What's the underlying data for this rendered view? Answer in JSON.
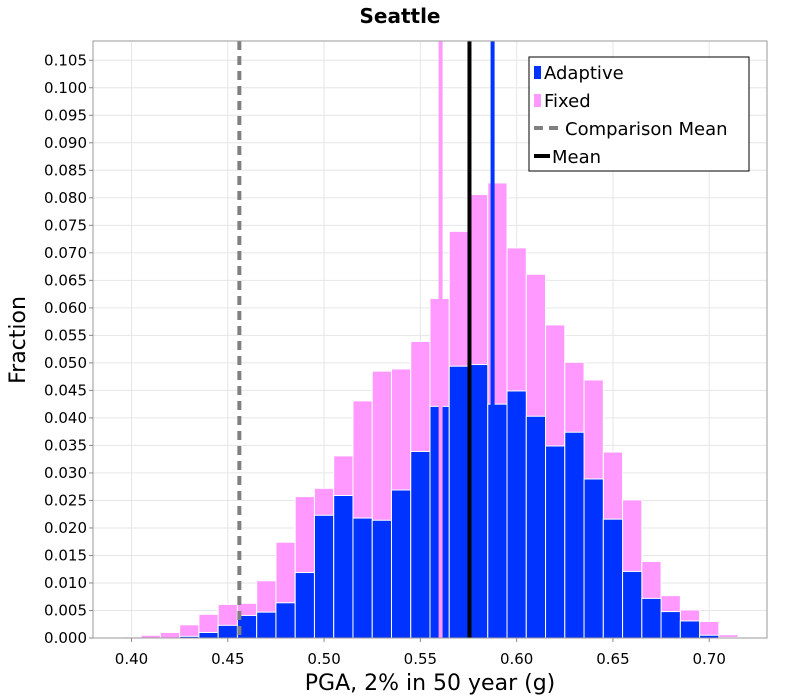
{
  "chart_data": {
    "type": "bar",
    "title": "Seattle",
    "xlabel": "PGA, 2% in 50 year (g)",
    "ylabel": "Fraction",
    "xlim": [
      0.38,
      0.73
    ],
    "ylim": [
      0.0,
      0.1085
    ],
    "bin_width": 0.01,
    "xticks": [
      "0.40",
      "0.45",
      "0.50",
      "0.55",
      "0.60",
      "0.65",
      "0.70"
    ],
    "yticks": [
      "0.000",
      "0.005",
      "0.010",
      "0.015",
      "0.020",
      "0.025",
      "0.030",
      "0.035",
      "0.040",
      "0.045",
      "0.050",
      "0.055",
      "0.060",
      "0.065",
      "0.070",
      "0.075",
      "0.080",
      "0.085",
      "0.090",
      "0.095",
      "0.100",
      "0.105"
    ],
    "grid": true,
    "legend_position": "top-right",
    "series": [
      {
        "name": "Fixed",
        "color": "#ff99ff",
        "bins": [
          {
            "x": 0.4,
            "v": 0.0002
          },
          {
            "x": 0.41,
            "v": 0.0005
          },
          {
            "x": 0.42,
            "v": 0.001
          },
          {
            "x": 0.43,
            "v": 0.0024
          },
          {
            "x": 0.44,
            "v": 0.0043
          },
          {
            "x": 0.45,
            "v": 0.0061
          },
          {
            "x": 0.46,
            "v": 0.0063
          },
          {
            "x": 0.47,
            "v": 0.0104
          },
          {
            "x": 0.48,
            "v": 0.0174
          },
          {
            "x": 0.49,
            "v": 0.0257
          },
          {
            "x": 0.5,
            "v": 0.0272
          },
          {
            "x": 0.51,
            "v": 0.0331
          },
          {
            "x": 0.52,
            "v": 0.0431
          },
          {
            "x": 0.53,
            "v": 0.0485
          },
          {
            "x": 0.54,
            "v": 0.0489
          },
          {
            "x": 0.55,
            "v": 0.0539
          },
          {
            "x": 0.56,
            "v": 0.0617
          },
          {
            "x": 0.57,
            "v": 0.0739
          },
          {
            "x": 0.58,
            "v": 0.0806
          },
          {
            "x": 0.59,
            "v": 0.0827
          },
          {
            "x": 0.6,
            "v": 0.0709
          },
          {
            "x": 0.61,
            "v": 0.0661
          },
          {
            "x": 0.62,
            "v": 0.0569
          },
          {
            "x": 0.63,
            "v": 0.0501
          },
          {
            "x": 0.64,
            "v": 0.0469
          },
          {
            "x": 0.65,
            "v": 0.0338
          },
          {
            "x": 0.66,
            "v": 0.0251
          },
          {
            "x": 0.67,
            "v": 0.0139
          },
          {
            "x": 0.68,
            "v": 0.0077
          },
          {
            "x": 0.69,
            "v": 0.0051
          },
          {
            "x": 0.7,
            "v": 0.003
          },
          {
            "x": 0.71,
            "v": 0.0006
          },
          {
            "x": 0.72,
            "v": 0.0001
          }
        ]
      },
      {
        "name": "Adaptive",
        "color": "#0033ff",
        "bins": [
          {
            "x": 0.43,
            "v": 0.0003
          },
          {
            "x": 0.44,
            "v": 0.001
          },
          {
            "x": 0.45,
            "v": 0.0023
          },
          {
            "x": 0.46,
            "v": 0.0041
          },
          {
            "x": 0.47,
            "v": 0.0047
          },
          {
            "x": 0.48,
            "v": 0.0064
          },
          {
            "x": 0.49,
            "v": 0.0119
          },
          {
            "x": 0.5,
            "v": 0.0223
          },
          {
            "x": 0.51,
            "v": 0.0259
          },
          {
            "x": 0.52,
            "v": 0.0218
          },
          {
            "x": 0.53,
            "v": 0.0214
          },
          {
            "x": 0.54,
            "v": 0.0269
          },
          {
            "x": 0.55,
            "v": 0.0339
          },
          {
            "x": 0.56,
            "v": 0.0421
          },
          {
            "x": 0.57,
            "v": 0.0494
          },
          {
            "x": 0.58,
            "v": 0.0497
          },
          {
            "x": 0.59,
            "v": 0.0425
          },
          {
            "x": 0.6,
            "v": 0.0449
          },
          {
            "x": 0.61,
            "v": 0.0403
          },
          {
            "x": 0.62,
            "v": 0.0349
          },
          {
            "x": 0.63,
            "v": 0.0374
          },
          {
            "x": 0.64,
            "v": 0.0289
          },
          {
            "x": 0.65,
            "v": 0.0216
          },
          {
            "x": 0.66,
            "v": 0.0121
          },
          {
            "x": 0.67,
            "v": 0.0072
          },
          {
            "x": 0.68,
            "v": 0.0048
          },
          {
            "x": 0.69,
            "v": 0.0031
          },
          {
            "x": 0.7,
            "v": 0.0005
          },
          {
            "x": 0.71,
            "v": 0.0001
          }
        ]
      }
    ],
    "lines": [
      {
        "name": "Comparison Mean",
        "x": 0.456,
        "color": "#808080",
        "style": "dashed"
      },
      {
        "name": "Mean",
        "x": 0.5755,
        "color": "#000000",
        "style": "solid"
      },
      {
        "name": "Fixed mean",
        "x": 0.5605,
        "color": "#ff99ff",
        "style": "solid"
      },
      {
        "name": "Adaptive mean",
        "x": 0.5875,
        "color": "#0033ff",
        "style": "solid"
      }
    ],
    "legend": [
      {
        "label": "Adaptive",
        "symbol": "square",
        "color": "#0033ff"
      },
      {
        "label": "Fixed",
        "symbol": "square",
        "color": "#ff99ff"
      },
      {
        "label": "Comparison Mean",
        "symbol": "dash",
        "color": "#808080"
      },
      {
        "label": "Mean",
        "symbol": "line",
        "color": "#000000"
      }
    ]
  }
}
